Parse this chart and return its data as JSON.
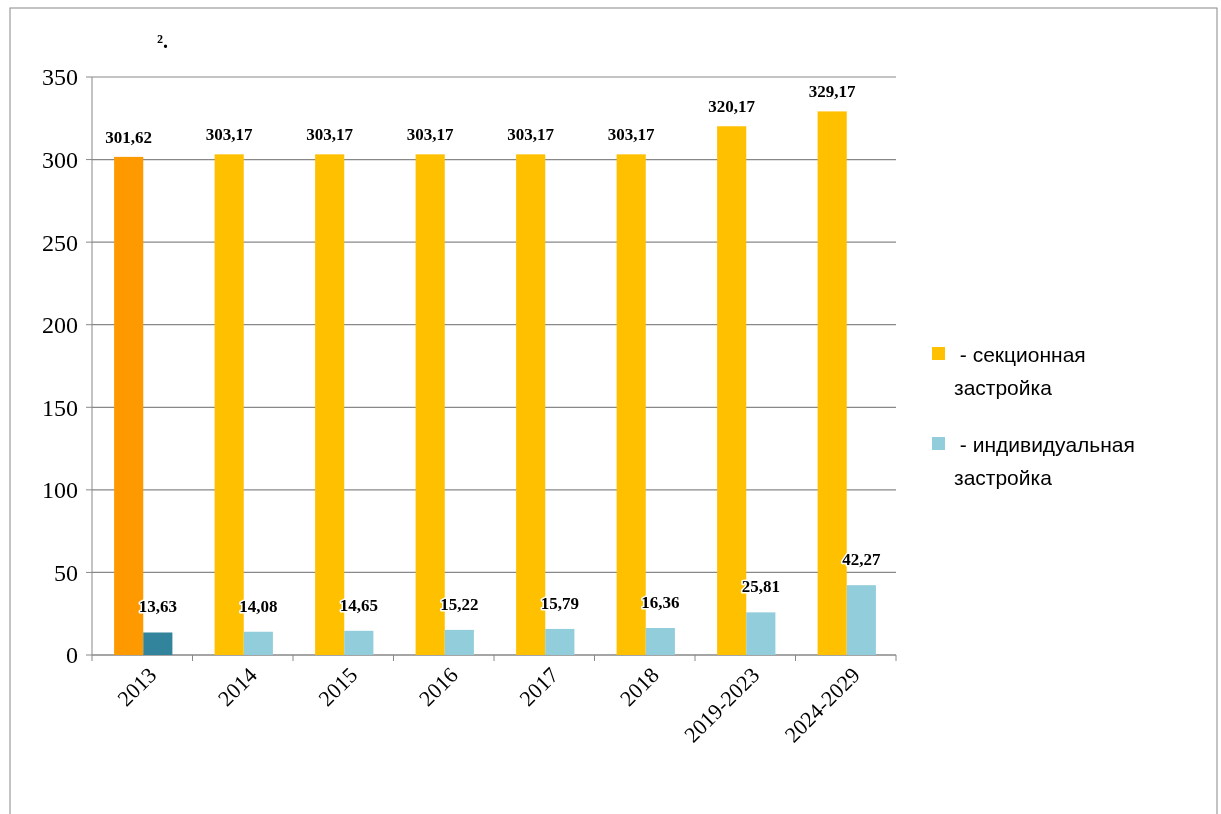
{
  "chart_data": {
    "type": "bar",
    "annotations": [
      "²."
    ],
    "categories": [
      "2013",
      "2014",
      "2015",
      "2016",
      "2017",
      "2018",
      "2019-2023",
      "2024-2029"
    ],
    "series": [
      {
        "name": "- секционная застройка",
        "color": "#ffc000",
        "colors": [
          "#ff9900",
          "#ffc000",
          "#ffc000",
          "#ffc000",
          "#ffc000",
          "#ffc000",
          "#ffc000",
          "#ffc000"
        ],
        "values": [
          301.62,
          303.17,
          303.17,
          303.17,
          303.17,
          303.17,
          320.17,
          329.17
        ],
        "value_labels": [
          "301,62",
          "303,17",
          "303,17",
          "303,17",
          "303,17",
          "303,17",
          "320,17",
          "329,17"
        ]
      },
      {
        "name": "- индивидуальная застройка",
        "color": "#92cddc",
        "colors": [
          "#31849b",
          "#92cddc",
          "#92cddc",
          "#92cddc",
          "#92cddc",
          "#92cddc",
          "#92cddc",
          "#92cddc"
        ],
        "values": [
          13.63,
          14.08,
          14.65,
          15.22,
          15.79,
          16.36,
          25.81,
          42.27
        ],
        "value_labels": [
          "13,63",
          "14,08",
          "14,65",
          "15,22",
          "15,79",
          "16,36",
          "25,81",
          "42,27"
        ]
      }
    ],
    "ylim": [
      0,
      350
    ],
    "yticks": [
      0,
      50,
      100,
      150,
      200,
      250,
      300,
      350
    ],
    "grid": "y",
    "legend": "right"
  }
}
